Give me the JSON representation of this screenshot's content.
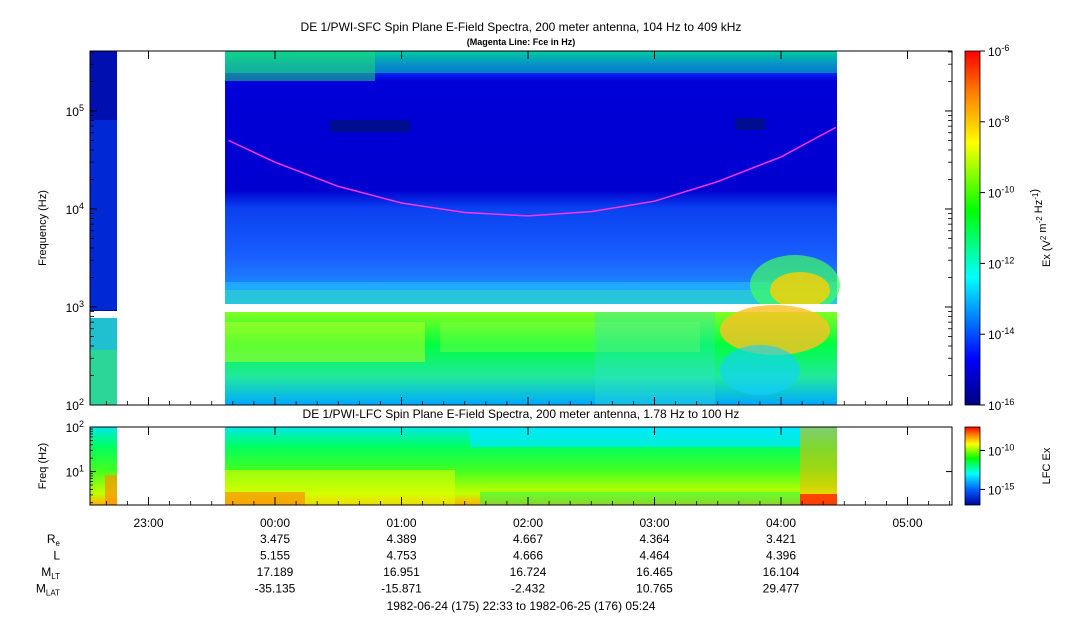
{
  "chart_data": [
    {
      "type": "heatmap",
      "title": "DE 1/PWI-SFC  Spin Plane E-Field Spectra, 200 meter antenna, 104 Hz to 409 kHz",
      "subtitle": "(Magenta Line: Fce in Hz)",
      "ylabel": "Frequency (Hz)",
      "y_scale": "log",
      "ylim": [
        100,
        409000
      ],
      "y_ticks": [
        {
          "value": 100,
          "base": "10",
          "exp": "2"
        },
        {
          "value": 1000,
          "base": "10",
          "exp": "3"
        },
        {
          "value": 10000,
          "base": "10",
          "exp": "4"
        },
        {
          "value": 100000,
          "base": "10",
          "exp": "5"
        }
      ],
      "x_time_range": [
        "1982-06-24 22:33",
        "1982-06-25 05:24"
      ],
      "data_gaps": [
        [
          "1982-06-24 22:50",
          "1982-06-24 23:37"
        ]
      ],
      "colorbar": {
        "label_parts": [
          {
            "t": "Ex (V",
            "s": ""
          },
          {
            "t": "2",
            "s": "sup"
          },
          {
            "t": " m",
            "s": ""
          },
          {
            "t": "-2",
            "s": "sup"
          },
          {
            "t": " Hz",
            "s": ""
          },
          {
            "t": "-1",
            "s": "sup"
          },
          {
            "t": ")",
            "s": ""
          }
        ],
        "scale": "log",
        "range": [
          1e-16,
          1e-06
        ],
        "ticks": [
          {
            "value": 1e-06,
            "base": "10",
            "exp": "-6"
          },
          {
            "value": 1e-08,
            "base": "10",
            "exp": "-8"
          },
          {
            "value": 1e-10,
            "base": "10",
            "exp": "-10"
          },
          {
            "value": 1e-12,
            "base": "10",
            "exp": "-12"
          },
          {
            "value": 1e-14,
            "base": "10",
            "exp": "-14"
          },
          {
            "value": 1e-16,
            "base": "10",
            "exp": "-16"
          }
        ]
      },
      "series": [
        {
          "name": "Fce",
          "color": "#ff33ff",
          "points": [
            {
              "t": "23:38",
              "f": 50000
            },
            {
              "t": "00:00",
              "f": 30000
            },
            {
              "t": "00:30",
              "f": 17000
            },
            {
              "t": "01:00",
              "f": 11500
            },
            {
              "t": "01:30",
              "f": 9200
            },
            {
              "t": "02:00",
              "f": 8500
            },
            {
              "t": "02:30",
              "f": 9400
            },
            {
              "t": "03:00",
              "f": 12000
            },
            {
              "t": "03:30",
              "f": 19000
            },
            {
              "t": "04:00",
              "f": 34000
            },
            {
              "t": "04:26",
              "f": 68000
            }
          ]
        }
      ]
    },
    {
      "type": "heatmap",
      "title": "DE 1/PWI-LFC  Spin Plane E-Field Spectra, 200 meter antenna, 1.78 Hz to 100 Hz",
      "ylabel": "Freq (Hz)",
      "y_scale": "log",
      "ylim": [
        1.78,
        100
      ],
      "y_ticks": [
        {
          "value": 10,
          "base": "10",
          "exp": "1"
        },
        {
          "value": 100,
          "base": "10",
          "exp": "2"
        }
      ],
      "colorbar": {
        "label": "LFC Ex",
        "scale": "log",
        "ticks": [
          {
            "value": 1e-10,
            "base": "10",
            "exp": "-10"
          },
          {
            "value": 1e-15,
            "base": "10",
            "exp": "-15"
          }
        ]
      }
    }
  ],
  "x_axis": {
    "tick_labels": [
      "23:00",
      "00:00",
      "01:00",
      "02:00",
      "03:00",
      "04:00",
      "05:00"
    ],
    "date_range": "1982-06-24 (175) 22:33 to 1982-06-25 (176) 05:24"
  },
  "ephemeris": {
    "rows": [
      {
        "base": "R",
        "sub": "e",
        "values": [
          "3.475",
          "4.389",
          "4.667",
          "4.364",
          "3.421"
        ]
      },
      {
        "base": "L",
        "sub": "",
        "values": [
          "5.155",
          "4.753",
          "4.666",
          "4.464",
          "4.396"
        ]
      },
      {
        "base": "M",
        "sub": "LT",
        "values": [
          "17.189",
          "16.951",
          "16.724",
          "16.465",
          "16.104"
        ]
      },
      {
        "base": "M",
        "sub": "LAT",
        "values": [
          "-35.135",
          "-15.871",
          "-2.432",
          "10.765",
          "29.477"
        ]
      }
    ]
  }
}
